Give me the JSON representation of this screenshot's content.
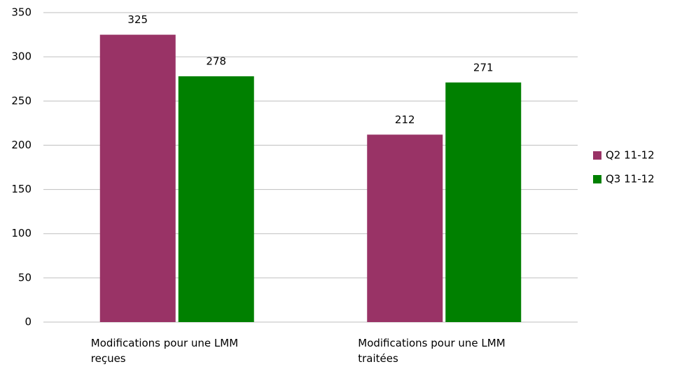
{
  "chart_data": {
    "type": "bar",
    "categories": [
      "Modifications pour une LMM reçues",
      "Modifications pour une LMM traitées"
    ],
    "series": [
      {
        "name": "Q2 11-12",
        "color": "#993366",
        "values": [
          325,
          212
        ]
      },
      {
        "name": "Q3 11-12",
        "color": "#008000",
        "values": [
          278,
          271
        ]
      }
    ],
    "ylim": [
      0,
      350
    ],
    "yticks": [
      0,
      50,
      100,
      150,
      200,
      250,
      300,
      350
    ],
    "grid": true,
    "legend": "right"
  }
}
